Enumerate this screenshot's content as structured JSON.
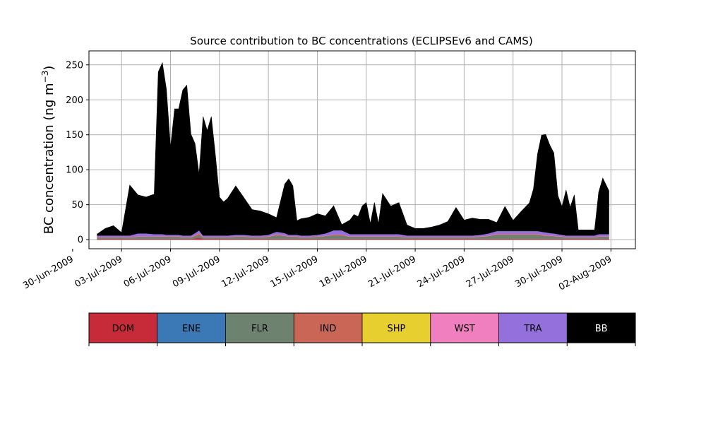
{
  "chart_data": {
    "type": "area",
    "title": "Source contribution to BC concentrations (ECLIPSEv6 and CAMS)",
    "ylabel_main": "BC concentration (ng m",
    "ylabel_sup": "−3",
    "ylabel_close": ")",
    "ylim": [
      -13,
      270
    ],
    "xlim": [
      "2009-07-01T00:00",
      "2009-08-03T12:00"
    ],
    "yticks": [
      0,
      50,
      100,
      150,
      200,
      250
    ],
    "xticks": [
      {
        "date": "2009-06-30",
        "label": "30-Jun-2009"
      },
      {
        "date": "2009-07-03",
        "label": "03-Jul-2009"
      },
      {
        "date": "2009-07-06",
        "label": "06-Jul-2009"
      },
      {
        "date": "2009-07-09",
        "label": "09-Jul-2009"
      },
      {
        "date": "2009-07-12",
        "label": "12-Jul-2009"
      },
      {
        "date": "2009-07-15",
        "label": "15-Jul-2009"
      },
      {
        "date": "2009-07-18",
        "label": "18-Jul-2009"
      },
      {
        "date": "2009-07-21",
        "label": "21-Jul-2009"
      },
      {
        "date": "2009-07-24",
        "label": "24-Jul-2009"
      },
      {
        "date": "2009-07-27",
        "label": "27-Jul-2009"
      },
      {
        "date": "2009-07-30",
        "label": "30-Jul-2009"
      },
      {
        "date": "2009-08-02",
        "label": "02-Aug-2009"
      }
    ],
    "grid": true,
    "x": [
      "2009-07-01T12:00",
      "2009-07-02T00:00",
      "2009-07-02T12:00",
      "2009-07-03T00:00",
      "2009-07-03T12:00",
      "2009-07-04T00:00",
      "2009-07-04T12:00",
      "2009-07-05T00:00",
      "2009-07-05T06:00",
      "2009-07-05T12:00",
      "2009-07-05T18:00",
      "2009-07-06T00:00",
      "2009-07-06T06:00",
      "2009-07-06T12:00",
      "2009-07-06T18:00",
      "2009-07-07T00:00",
      "2009-07-07T06:00",
      "2009-07-07T12:00",
      "2009-07-07T18:00",
      "2009-07-08T00:00",
      "2009-07-08T06:00",
      "2009-07-08T12:00",
      "2009-07-08T18:00",
      "2009-07-09T00:00",
      "2009-07-09T06:00",
      "2009-07-09T12:00",
      "2009-07-10T00:00",
      "2009-07-10T12:00",
      "2009-07-11T00:00",
      "2009-07-11T12:00",
      "2009-07-12T00:00",
      "2009-07-12T12:00",
      "2009-07-13T00:00",
      "2009-07-13T06:00",
      "2009-07-13T12:00",
      "2009-07-13T18:00",
      "2009-07-14T00:00",
      "2009-07-14T12:00",
      "2009-07-15T00:00",
      "2009-07-15T12:00",
      "2009-07-16T00:00",
      "2009-07-16T12:00",
      "2009-07-17T00:00",
      "2009-07-17T06:00",
      "2009-07-17T12:00",
      "2009-07-17T18:00",
      "2009-07-18T00:00",
      "2009-07-18T06:00",
      "2009-07-18T12:00",
      "2009-07-18T18:00",
      "2009-07-19T00:00",
      "2009-07-19T12:00",
      "2009-07-20T00:00",
      "2009-07-20T12:00",
      "2009-07-21T00:00",
      "2009-07-21T12:00",
      "2009-07-22T00:00",
      "2009-07-22T12:00",
      "2009-07-23T00:00",
      "2009-07-23T12:00",
      "2009-07-24T00:00",
      "2009-07-24T12:00",
      "2009-07-25T00:00",
      "2009-07-25T12:00",
      "2009-07-26T00:00",
      "2009-07-26T12:00",
      "2009-07-27T00:00",
      "2009-07-27T12:00",
      "2009-07-28T00:00",
      "2009-07-28T06:00",
      "2009-07-28T12:00",
      "2009-07-28T18:00",
      "2009-07-29T00:00",
      "2009-07-29T06:00",
      "2009-07-29T12:00",
      "2009-07-29T18:00",
      "2009-07-30T00:00",
      "2009-07-30T06:00",
      "2009-07-30T12:00",
      "2009-07-30T18:00",
      "2009-07-31T00:00",
      "2009-07-31T12:00",
      "2009-08-01T00:00",
      "2009-08-01T06:00",
      "2009-08-01T12:00",
      "2009-08-01T21:00"
    ],
    "series": [
      {
        "name": "DOM",
        "color": "#c72b39",
        "values": [
          1,
          1,
          1,
          1,
          1,
          1,
          1,
          1,
          1,
          1,
          1,
          1,
          1,
          1,
          1,
          1,
          1,
          2,
          3,
          1,
          1,
          1,
          1,
          1,
          1,
          1,
          1,
          1,
          1,
          1,
          1,
          1,
          1,
          1,
          1,
          1,
          1,
          1,
          1,
          1,
          1,
          1,
          1,
          1,
          1,
          1,
          1,
          1,
          1,
          1,
          1,
          1,
          1,
          1,
          1,
          1,
          1,
          1,
          1,
          1,
          1,
          1,
          1,
          1,
          1,
          1,
          1,
          1,
          1,
          1,
          1,
          1,
          1,
          1,
          1,
          1,
          1,
          1,
          1,
          1,
          1,
          1,
          1,
          1,
          1,
          1
        ]
      },
      {
        "name": "ENE",
        "color": "#3a79b5",
        "values": [
          0,
          0,
          0,
          0,
          0,
          0,
          0,
          0,
          0,
          0,
          0,
          0,
          0,
          0,
          0,
          0,
          0,
          0,
          0,
          0,
          0,
          0,
          0,
          0,
          0,
          0,
          0,
          0,
          0,
          0,
          0,
          0,
          0,
          0,
          0,
          0,
          0,
          0,
          0,
          0,
          0,
          0,
          0,
          0,
          0,
          0,
          0,
          0,
          0,
          0,
          0,
          0,
          0,
          0,
          0,
          0,
          0,
          0,
          0,
          0,
          0,
          0,
          0,
          0,
          0,
          0,
          0,
          0,
          0,
          0,
          0,
          0,
          0,
          0,
          0,
          0,
          0,
          0,
          0,
          0,
          0,
          0,
          0,
          0,
          0,
          0
        ]
      },
      {
        "name": "FLR",
        "color": "#6e8270",
        "values": [
          2,
          2,
          2,
          2,
          2,
          3,
          3,
          3,
          3,
          3,
          3,
          3,
          3,
          3,
          2,
          2,
          2,
          3,
          4,
          2,
          2,
          2,
          2,
          2,
          2,
          2,
          3,
          3,
          2,
          2,
          3,
          5,
          4,
          3,
          3,
          3,
          2,
          2,
          3,
          4,
          5,
          5,
          3,
          3,
          3,
          3,
          3,
          3,
          3,
          3,
          3,
          3,
          3,
          2,
          2,
          2,
          2,
          2,
          2,
          2,
          2,
          2,
          3,
          4,
          6,
          6,
          6,
          6,
          6,
          6,
          6,
          5,
          4,
          4,
          4,
          3,
          3,
          2,
          2,
          2,
          2,
          2,
          2,
          3,
          3,
          3
        ]
      },
      {
        "name": "IND",
        "color": "#c96656",
        "values": [
          0.5,
          0.5,
          0.5,
          0.5,
          0.5,
          0.5,
          0.5,
          0.5,
          0.5,
          0.5,
          0.5,
          0.5,
          0.5,
          0.5,
          0.5,
          0.5,
          0.5,
          1,
          2,
          0.5,
          0.5,
          0.5,
          0.5,
          0.5,
          0.5,
          0.5,
          0.5,
          0.5,
          0.5,
          0.5,
          0.5,
          1,
          1,
          0.5,
          0.5,
          0.5,
          0.5,
          0.5,
          0.5,
          0.5,
          1,
          1,
          0.5,
          0.5,
          0.5,
          0.5,
          0.5,
          0.5,
          0.5,
          0.5,
          0.5,
          0.5,
          0.5,
          0.5,
          0.5,
          0.5,
          0.5,
          0.5,
          0.5,
          0.5,
          0.5,
          0.5,
          0.5,
          0.5,
          1,
          1,
          1,
          1,
          1,
          1,
          1,
          1,
          1,
          1,
          0.5,
          0.5,
          0.5,
          0.5,
          0.5,
          0.5,
          0.5,
          0.5,
          0.5,
          0.5,
          0.5,
          0.5
        ]
      },
      {
        "name": "SHP",
        "color": "#e6cf2e",
        "values": [
          0,
          0,
          0,
          0,
          0,
          0,
          0,
          0,
          0,
          0,
          0,
          0,
          0,
          0,
          0,
          0,
          0,
          0,
          0,
          0,
          0,
          0,
          0,
          0,
          0,
          0,
          0,
          0,
          0,
          0,
          0,
          0,
          0,
          0,
          0,
          0,
          0,
          0,
          0,
          0,
          0,
          0,
          0,
          0,
          0,
          0,
          0,
          0,
          0,
          0,
          0,
          0,
          0,
          0,
          0,
          0,
          0,
          0,
          0,
          0,
          0,
          0,
          0,
          0,
          0,
          0,
          0,
          0,
          0,
          0,
          0,
          0,
          0,
          0,
          0,
          0,
          0,
          0,
          0,
          0,
          0,
          0,
          0,
          0,
          0,
          0
        ]
      },
      {
        "name": "WST",
        "color": "#f07fbf",
        "values": [
          0.5,
          0.5,
          0.5,
          0.5,
          0.5,
          0.5,
          0.5,
          0.5,
          0.5,
          0.5,
          0.5,
          0.5,
          0.5,
          0.5,
          0.5,
          0.5,
          0.5,
          0.5,
          0.5,
          0.5,
          0.5,
          0.5,
          0.5,
          0.5,
          0.5,
          0.5,
          0.5,
          0.5,
          0.5,
          0.5,
          0.5,
          0.5,
          0.5,
          0.5,
          0.5,
          0.5,
          0.5,
          0.5,
          0.5,
          0.5,
          0.5,
          0.5,
          0.5,
          0.5,
          0.5,
          0.5,
          0.5,
          0.5,
          0.5,
          0.5,
          0.5,
          0.5,
          0.5,
          0.5,
          0.5,
          0.5,
          0.5,
          0.5,
          0.5,
          0.5,
          0.5,
          0.5,
          0.5,
          0.5,
          0.5,
          0.5,
          0.5,
          0.5,
          0.5,
          0.5,
          0.5,
          0.5,
          0.5,
          0.5,
          0.5,
          0.5,
          0.5,
          0.5,
          0.5,
          0.5,
          0.5,
          0.5,
          0.5,
          0.5,
          0.5,
          0.5
        ]
      },
      {
        "name": "TRA",
        "color": "#9370db",
        "values": [
          2,
          2,
          2,
          2,
          2,
          4,
          4,
          3,
          3,
          3,
          2,
          2,
          2,
          2,
          2,
          2,
          2,
          3,
          4,
          2,
          2,
          2,
          2,
          2,
          2,
          2,
          2,
          2,
          2,
          2,
          2,
          4,
          3,
          2,
          2,
          2,
          2,
          2,
          2,
          3,
          6,
          6,
          3,
          3,
          3,
          3,
          3,
          3,
          3,
          3,
          3,
          3,
          3,
          2,
          2,
          2,
          2,
          2,
          2,
          2,
          2,
          2,
          2,
          3,
          4,
          4,
          4,
          4,
          4,
          4,
          4,
          4,
          4,
          3,
          3,
          3,
          2,
          2,
          2,
          2,
          2,
          2,
          2,
          3,
          3,
          3
        ]
      },
      {
        "name": "BB",
        "color": "#000000",
        "values": [
          2,
          10,
          14,
          4,
          72,
          55,
          52,
          57,
          232,
          245,
          208,
          125,
          180,
          180,
          208,
          215,
          145,
          128,
          80,
          170,
          150,
          170,
          115,
          55,
          48,
          53,
          70,
          53,
          37,
          35,
          30,
          20,
          70,
          80,
          70,
          20,
          24,
          26,
          30,
          25,
          35,
          8,
          20,
          28,
          25,
          40,
          45,
          15,
          45,
          15,
          58,
          40,
          45,
          15,
          10,
          10,
          12,
          15,
          20,
          40,
          22,
          25,
          22,
          20,
          12,
          35,
          15,
          28,
          40,
          60,
          110,
          138,
          140,
          126,
          115,
          55,
          40,
          65,
          40,
          58,
          8,
          8,
          8,
          60,
          80,
          62
        ]
      }
    ],
    "legend": [
      {
        "label": "DOM",
        "color": "#c72b39",
        "text_color": "#000000"
      },
      {
        "label": "ENE",
        "color": "#3a79b5",
        "text_color": "#000000"
      },
      {
        "label": "FLR",
        "color": "#6e8270",
        "text_color": "#000000"
      },
      {
        "label": "IND",
        "color": "#c96656",
        "text_color": "#000000"
      },
      {
        "label": "SHP",
        "color": "#e6cf2e",
        "text_color": "#000000"
      },
      {
        "label": "WST",
        "color": "#f07fbf",
        "text_color": "#000000"
      },
      {
        "label": "TRA",
        "color": "#9370db",
        "text_color": "#000000"
      },
      {
        "label": "BB",
        "color": "#000000",
        "text_color": "#ffffff"
      }
    ]
  }
}
